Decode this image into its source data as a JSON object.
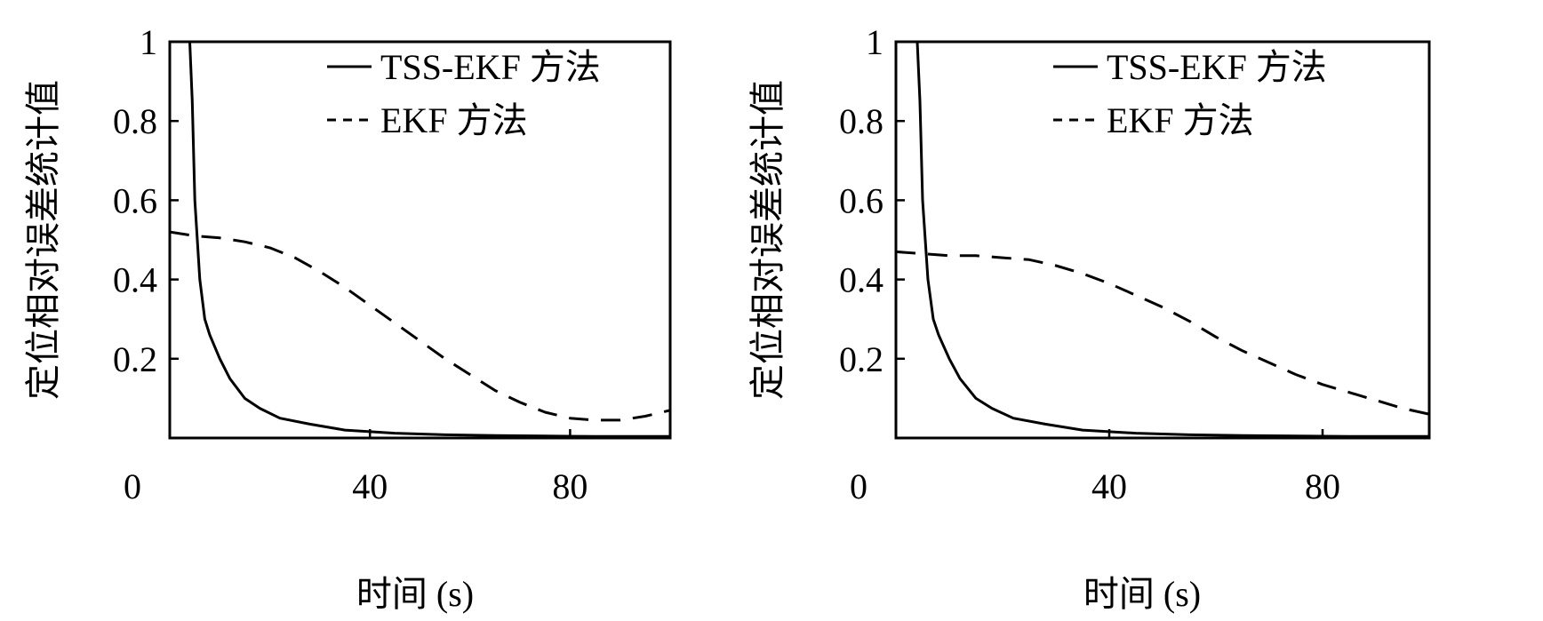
{
  "chart_data": [
    {
      "type": "line",
      "xlabel": "时间 (s)",
      "ylabel": "定位相对误差统计值",
      "xlim": [
        0,
        100
      ],
      "ylim": [
        0,
        1
      ],
      "x_ticks": [
        "0",
        "40",
        "80"
      ],
      "x_tick_values": [
        0,
        40,
        80
      ],
      "y_ticks": [
        "0.2",
        "0.4",
        "0.6",
        "0.8",
        "1"
      ],
      "y_tick_values": [
        0.2,
        0.4,
        0.6,
        0.8,
        1
      ],
      "legend": "top-right",
      "series": [
        {
          "name": "TSS-EKF 方法",
          "style": "solid",
          "x": [
            4,
            4.5,
            5,
            6,
            7,
            8,
            10,
            12,
            15,
            18,
            22,
            28,
            35,
            45,
            55,
            65,
            75,
            85,
            95,
            100
          ],
          "y": [
            1.0,
            0.85,
            0.6,
            0.4,
            0.3,
            0.26,
            0.2,
            0.15,
            0.1,
            0.075,
            0.05,
            0.035,
            0.02,
            0.012,
            0.008,
            0.006,
            0.005,
            0.004,
            0.004,
            0.004
          ]
        },
        {
          "name": "EKF 方法",
          "style": "dashed",
          "x": [
            0,
            5,
            10,
            15,
            20,
            25,
            30,
            35,
            40,
            45,
            50,
            55,
            60,
            65,
            70,
            75,
            80,
            85,
            90,
            95,
            100
          ],
          "y": [
            0.52,
            0.51,
            0.505,
            0.495,
            0.48,
            0.455,
            0.42,
            0.38,
            0.335,
            0.29,
            0.245,
            0.2,
            0.16,
            0.12,
            0.09,
            0.065,
            0.05,
            0.045,
            0.045,
            0.055,
            0.07
          ]
        }
      ]
    },
    {
      "type": "line",
      "xlabel": "时间 (s)",
      "ylabel": "定位相对误差统计值",
      "xlim": [
        0,
        100
      ],
      "ylim": [
        0,
        1
      ],
      "x_ticks": [
        "0",
        "40",
        "80"
      ],
      "x_tick_values": [
        0,
        40,
        80
      ],
      "y_ticks": [
        "0.2",
        "0.4",
        "0.6",
        "0.8",
        "1"
      ],
      "y_tick_values": [
        0.2,
        0.4,
        0.6,
        0.8,
        1
      ],
      "legend": "top-right",
      "series": [
        {
          "name": "TSS-EKF 方法",
          "style": "solid",
          "x": [
            4,
            4.5,
            5,
            6,
            7,
            8,
            10,
            12,
            15,
            18,
            22,
            28,
            35,
            45,
            55,
            65,
            75,
            85,
            95,
            100
          ],
          "y": [
            1.0,
            0.85,
            0.6,
            0.4,
            0.3,
            0.26,
            0.2,
            0.15,
            0.1,
            0.075,
            0.05,
            0.035,
            0.02,
            0.012,
            0.008,
            0.006,
            0.005,
            0.004,
            0.004,
            0.004
          ]
        },
        {
          "name": "EKF 方法",
          "style": "dashed",
          "x": [
            0,
            5,
            10,
            15,
            20,
            25,
            30,
            35,
            40,
            45,
            50,
            55,
            60,
            65,
            70,
            75,
            80,
            85,
            90,
            95,
            100
          ],
          "y": [
            0.47,
            0.465,
            0.46,
            0.46,
            0.455,
            0.45,
            0.435,
            0.415,
            0.39,
            0.36,
            0.33,
            0.295,
            0.255,
            0.22,
            0.19,
            0.16,
            0.135,
            0.115,
            0.095,
            0.075,
            0.06
          ]
        }
      ]
    }
  ]
}
